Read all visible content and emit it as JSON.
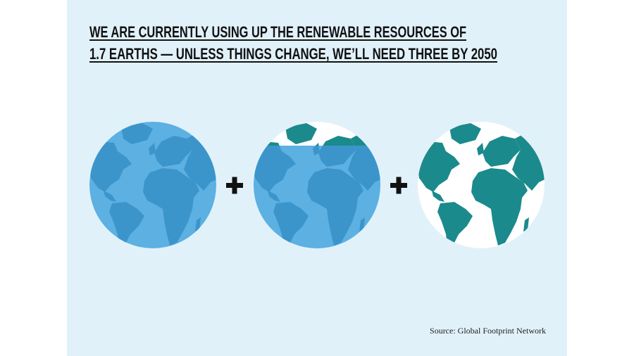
{
  "title": {
    "lines": [
      "WE ARE CURRENTLY USING UP THE RENEWABLE RESOURCES OF",
      "1.7 EARTHS — UNLESS THINGS CHANGE, WE’LL NEED THREE BY 2050"
    ]
  },
  "source": "Source: Global Footprint Network"
}
